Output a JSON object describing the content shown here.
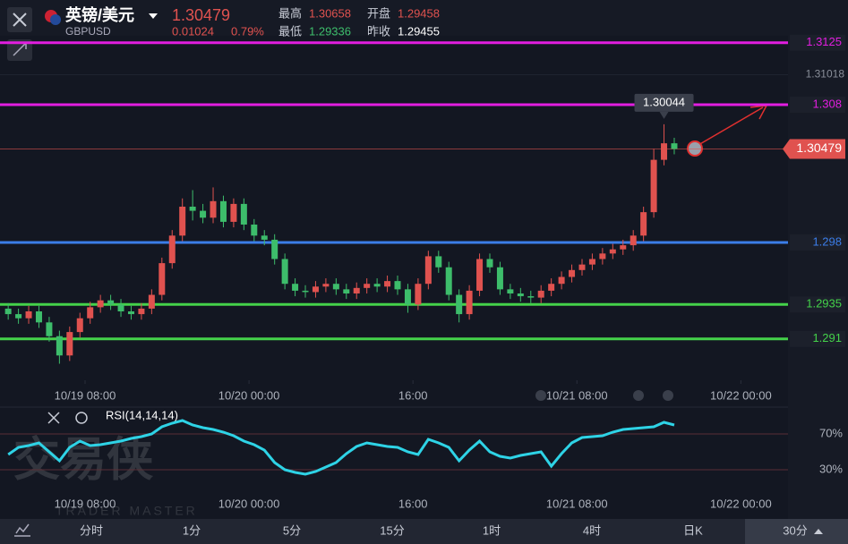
{
  "header": {
    "pair": "英镑/美元",
    "symbol": "GBPUSD",
    "price": "1.30479",
    "change": "0.01024",
    "change_pct": "0.79%",
    "stats": [
      {
        "label": "最高",
        "value": "1.30658"
      },
      {
        "label": "开盘",
        "value": "1.29458"
      },
      {
        "label": "最低",
        "value": "1.29336"
      },
      {
        "label": "昨收",
        "value": "1.29455"
      }
    ]
  },
  "watermark": {
    "title": "交易侠",
    "subtitle": "TRADER MASTER"
  },
  "tabs": [
    "分时",
    "1分",
    "5分",
    "15分",
    "1时",
    "4时",
    "日K",
    "30分"
  ],
  "chart_data": {
    "type": "candlestick",
    "up_color": "#e0524f",
    "down_color": "#3dbd6b",
    "x": [
      0.5,
      1.5,
      2.5,
      3.5,
      4.5,
      5.5,
      6.5,
      7.5,
      8.5,
      9.5,
      10.5,
      11.5,
      12.5,
      13.5,
      14.5,
      15.5,
      16.5,
      17.5,
      18.5,
      19.5,
      20.5,
      21.5,
      22.5,
      23.5,
      24.5,
      25.5,
      26.5,
      27.5,
      28.5,
      29.5,
      30.5,
      31.5,
      32.5,
      33.5,
      34.5,
      35.5,
      36.5,
      37.5,
      38.5,
      39.5,
      40.5,
      41.5,
      42.5,
      43.5,
      44.5,
      45.5,
      46.5,
      47.5,
      48.5,
      49.5,
      50.5,
      51.5,
      52.5,
      53.5,
      54.5,
      55.5,
      56.5,
      57.5,
      58.5,
      59.5,
      60.5,
      61.5,
      62.5,
      63.5,
      64.5,
      65.5
    ],
    "open": [
      1.2932,
      1.2928,
      1.2925,
      1.293,
      1.2922,
      1.2912,
      1.2898,
      1.2915,
      1.2925,
      1.2933,
      1.2938,
      1.2935,
      1.293,
      1.2928,
      1.2932,
      1.2942,
      1.2965,
      1.2985,
      1.3006,
      1.3003,
      1.2998,
      1.301,
      1.2995,
      1.3008,
      1.2993,
      1.2985,
      1.2982,
      1.2968,
      1.295,
      1.2945,
      1.2944,
      1.2948,
      1.295,
      1.2946,
      1.2943,
      1.2947,
      1.295,
      1.2948,
      1.2952,
      1.2946,
      1.2935,
      1.295,
      1.297,
      1.2962,
      1.2942,
      1.2928,
      1.2945,
      1.2968,
      1.2962,
      1.2946,
      1.2943,
      1.2941,
      1.294,
      1.2945,
      1.295,
      1.2955,
      1.296,
      1.2964,
      1.2968,
      1.2972,
      1.2975,
      1.2978,
      1.2985,
      1.3002,
      1.304,
      1.3052
    ],
    "high": [
      1.2936,
      1.2932,
      1.2934,
      1.2934,
      1.2926,
      1.2916,
      1.2919,
      1.2929,
      1.2937,
      1.2942,
      1.2942,
      1.2939,
      1.2934,
      1.2936,
      1.2946,
      1.2969,
      1.2989,
      1.3012,
      1.3018,
      1.3008,
      1.302,
      1.3014,
      1.3012,
      1.3012,
      1.2997,
      1.2989,
      1.2986,
      1.2972,
      1.2954,
      1.2949,
      1.2952,
      1.2954,
      1.2954,
      1.295,
      1.2951,
      1.2954,
      1.2954,
      1.2956,
      1.2956,
      1.295,
      1.2954,
      1.2974,
      1.2974,
      1.2966,
      1.2946,
      1.2949,
      1.2972,
      1.2972,
      1.2966,
      1.295,
      1.2947,
      1.2945,
      1.2949,
      1.2954,
      1.2959,
      1.2964,
      1.2968,
      1.2972,
      1.2976,
      1.2979,
      1.2982,
      1.2989,
      1.3006,
      1.3048,
      1.30658,
      1.3056
    ],
    "low": [
      1.2924,
      1.2921,
      1.2921,
      1.2918,
      1.2908,
      1.2892,
      1.2894,
      1.2911,
      1.2921,
      1.2929,
      1.2931,
      1.2926,
      1.2924,
      1.2924,
      1.2928,
      1.2938,
      1.2961,
      1.2981,
      1.2996,
      1.2994,
      1.2994,
      1.2991,
      1.2991,
      1.2989,
      1.2981,
      1.2978,
      1.2964,
      1.2946,
      1.2941,
      1.294,
      1.294,
      1.2944,
      1.2942,
      1.2939,
      1.2939,
      1.2943,
      1.2944,
      1.2944,
      1.2942,
      1.2929,
      1.2931,
      1.2946,
      1.2958,
      1.2938,
      1.2922,
      1.2924,
      1.2941,
      1.2958,
      1.2942,
      1.2939,
      1.2937,
      1.2936,
      1.2936,
      1.2941,
      1.2946,
      1.2951,
      1.2956,
      1.296,
      1.2964,
      1.2968,
      1.2971,
      1.2974,
      1.2981,
      1.2998,
      1.3036,
      1.3044
    ],
    "close": [
      1.2928,
      1.2925,
      1.293,
      1.2922,
      1.2912,
      1.2898,
      1.2915,
      1.2925,
      1.2933,
      1.2938,
      1.2935,
      1.293,
      1.2928,
      1.2932,
      1.2942,
      1.2965,
      1.2985,
      1.3006,
      1.3003,
      1.2998,
      1.301,
      1.2995,
      1.3008,
      1.2993,
      1.2985,
      1.2982,
      1.2968,
      1.295,
      1.2945,
      1.2944,
      1.2948,
      1.295,
      1.2946,
      1.2943,
      1.2947,
      1.295,
      1.2948,
      1.2952,
      1.2946,
      1.2935,
      1.295,
      1.297,
      1.2962,
      1.2942,
      1.2928,
      1.2945,
      1.2968,
      1.2962,
      1.2946,
      1.2943,
      1.2941,
      1.294,
      1.2945,
      1.295,
      1.2955,
      1.296,
      1.2964,
      1.2968,
      1.2972,
      1.2975,
      1.2978,
      1.2985,
      1.3002,
      1.304,
      1.3052,
      1.30479
    ],
    "xlim": [
      -0.3,
      76.6
    ],
    "xticks": [
      {
        "value": 8,
        "label": "10/19 08:00"
      },
      {
        "value": 24,
        "label": "10/20 00:00"
      },
      {
        "value": 40,
        "label": "16:00"
      },
      {
        "value": 56,
        "label": "10/21 08:00"
      },
      {
        "value": 72,
        "label": "10/22 00:00"
      }
    ],
    "ylim": [
      1.288,
      1.3156
    ],
    "yticks": [
      1.31018
    ],
    "levels": [
      {
        "value": 1.3125,
        "color": "#e21ee0"
      },
      {
        "value": 1.308,
        "color": "#e21ee0"
      },
      {
        "value": 1.298,
        "color": "#3b7de8"
      },
      {
        "value": 1.2935,
        "color": "#44d24a"
      },
      {
        "value": 1.291,
        "color": "#44d24a"
      }
    ],
    "last_price": 1.30479,
    "last_color": "#e0524f",
    "annotation": "1.30044",
    "rsi": {
      "label": "RSI(14,14,14)",
      "color": "#2ed3e6",
      "values": [
        47,
        55,
        57,
        60,
        50,
        40,
        55,
        62,
        57,
        58,
        60,
        62,
        65,
        67,
        70,
        78,
        82,
        85,
        80,
        77,
        75,
        72,
        68,
        62,
        58,
        52,
        38,
        30,
        27,
        25,
        28,
        33,
        38,
        48,
        56,
        60,
        58,
        56,
        55,
        50,
        47,
        64,
        60,
        55,
        40,
        52,
        62,
        50,
        45,
        43,
        46,
        48,
        50,
        34,
        48,
        60,
        66,
        67,
        68,
        72,
        75,
        76,
        77,
        78,
        83,
        80
      ],
      "ylim": [
        15,
        85
      ],
      "yticks": [
        {
          "value": 70,
          "label": "70%"
        },
        {
          "value": 30,
          "label": "30%"
        }
      ]
    }
  }
}
